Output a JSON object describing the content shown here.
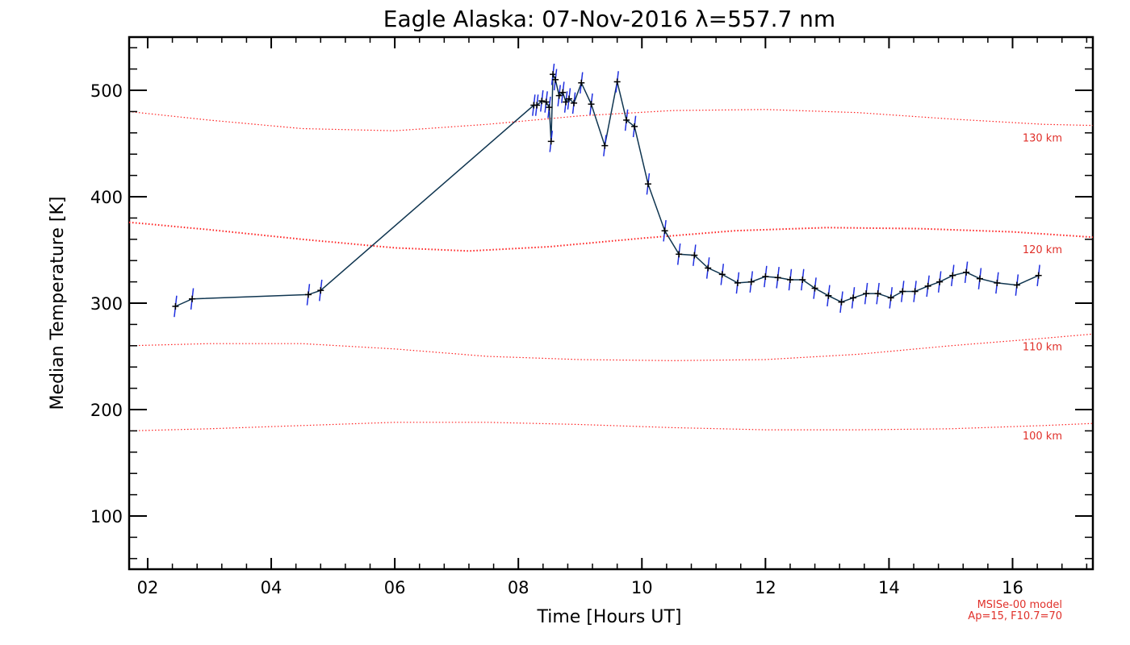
{
  "chart_data": {
    "type": "line",
    "title": "Eagle Alaska: 07-Nov-2016 λ=557.7 nm",
    "xlabel": "Time [Hours UT]",
    "ylabel": "Median Temperature [K]",
    "xlim": [
      1.7,
      17.3
    ],
    "ylim": [
      50,
      550
    ],
    "x_ticks": [
      2,
      4,
      6,
      8,
      10,
      12,
      14,
      16
    ],
    "x_tick_labels": [
      "02",
      "04",
      "06",
      "08",
      "10",
      "12",
      "14",
      "16"
    ],
    "y_ticks": [
      100,
      200,
      300,
      400,
      500
    ],
    "y_tick_labels": [
      "100",
      "200",
      "300",
      "400",
      "500"
    ],
    "grid": false,
    "series": [
      {
        "color": "#0f3550",
        "error_bar_color": "#1f2fe0",
        "marker": "plus",
        "points": [
          [
            2.45,
            297
          ],
          [
            2.72,
            304
          ],
          [
            4.6,
            308
          ],
          [
            4.8,
            312
          ],
          [
            8.25,
            486
          ],
          [
            8.3,
            486
          ],
          [
            8.38,
            490
          ],
          [
            8.45,
            489
          ],
          [
            8.5,
            484
          ],
          [
            8.53,
            452
          ],
          [
            8.56,
            515
          ],
          [
            8.6,
            510
          ],
          [
            8.66,
            495
          ],
          [
            8.72,
            498
          ],
          [
            8.77,
            489
          ],
          [
            8.82,
            492
          ],
          [
            8.9,
            488
          ],
          [
            9.02,
            507
          ],
          [
            9.18,
            487
          ],
          [
            9.4,
            448
          ],
          [
            9.6,
            508
          ],
          [
            9.75,
            472
          ],
          [
            9.88,
            466
          ],
          [
            10.1,
            412
          ],
          [
            10.37,
            368
          ],
          [
            10.6,
            346
          ],
          [
            10.85,
            345
          ],
          [
            11.07,
            333
          ],
          [
            11.3,
            327
          ],
          [
            11.55,
            319
          ],
          [
            11.77,
            320
          ],
          [
            12.0,
            325
          ],
          [
            12.2,
            324
          ],
          [
            12.4,
            322
          ],
          [
            12.6,
            322
          ],
          [
            12.8,
            314
          ],
          [
            13.02,
            307
          ],
          [
            13.23,
            301
          ],
          [
            13.42,
            305
          ],
          [
            13.63,
            309
          ],
          [
            13.82,
            309
          ],
          [
            14.03,
            305
          ],
          [
            14.22,
            311
          ],
          [
            14.42,
            311
          ],
          [
            14.63,
            316
          ],
          [
            14.82,
            320
          ],
          [
            15.03,
            326
          ],
          [
            15.25,
            329
          ],
          [
            15.47,
            323
          ],
          [
            15.75,
            319
          ],
          [
            16.07,
            317
          ],
          [
            16.42,
            326
          ]
        ],
        "error": 10
      }
    ],
    "model_curves": [
      {
        "label": "130 km",
        "color": "#ff2020",
        "points": [
          [
            1.7,
            480
          ],
          [
            3.0,
            472
          ],
          [
            4.5,
            464
          ],
          [
            6.0,
            462
          ],
          [
            7.5,
            468
          ],
          [
            9.0,
            476
          ],
          [
            10.5,
            481
          ],
          [
            12.0,
            482
          ],
          [
            13.5,
            479
          ],
          [
            15.0,
            473
          ],
          [
            16.5,
            468
          ],
          [
            17.3,
            467
          ]
        ]
      },
      {
        "label": "120 km",
        "color": "#ff2020",
        "points": [
          [
            1.7,
            376
          ],
          [
            3.0,
            369
          ],
          [
            4.5,
            360
          ],
          [
            6.0,
            352
          ],
          [
            7.2,
            349
          ],
          [
            8.5,
            353
          ],
          [
            10.0,
            361
          ],
          [
            11.5,
            368
          ],
          [
            13.0,
            371
          ],
          [
            14.5,
            370
          ],
          [
            16.0,
            367
          ],
          [
            17.3,
            362
          ]
        ]
      },
      {
        "label": "110 km",
        "color": "#ff2020",
        "points": [
          [
            1.7,
            260
          ],
          [
            3.0,
            262
          ],
          [
            4.5,
            262
          ],
          [
            6.0,
            257
          ],
          [
            7.5,
            250
          ],
          [
            9.0,
            247
          ],
          [
            10.5,
            246
          ],
          [
            12.0,
            247
          ],
          [
            13.5,
            252
          ],
          [
            15.0,
            260
          ],
          [
            16.5,
            267
          ],
          [
            17.3,
            271
          ]
        ]
      },
      {
        "label": "100 km",
        "color": "#ff2020",
        "points": [
          [
            1.7,
            180
          ],
          [
            3.0,
            182
          ],
          [
            4.5,
            185
          ],
          [
            6.0,
            188
          ],
          [
            7.5,
            188
          ],
          [
            9.0,
            186
          ],
          [
            10.5,
            183
          ],
          [
            12.0,
            181
          ],
          [
            13.5,
            181
          ],
          [
            15.0,
            182
          ],
          [
            16.5,
            185
          ],
          [
            17.3,
            187
          ]
        ]
      }
    ]
  },
  "notes": {
    "line1": "MSISe-00 model",
    "line2": "Ap=15, F10.7=70"
  },
  "colors": {
    "data_line": "#0f3550",
    "error_bar": "#1f2fe0",
    "model": "#ff2020",
    "model_label": "#e0302a"
  }
}
